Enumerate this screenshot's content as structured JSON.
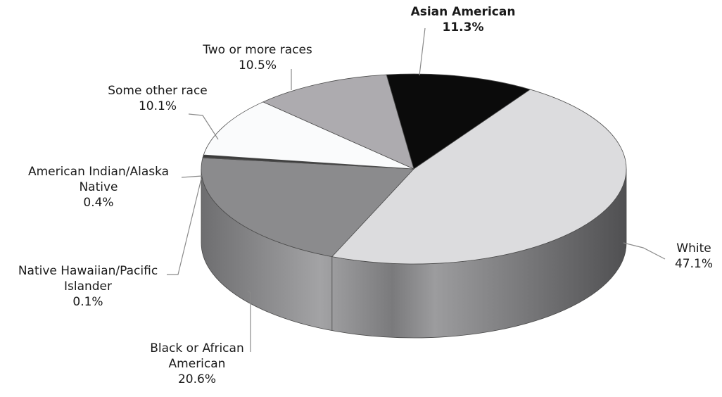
{
  "chart_data": {
    "type": "pie",
    "slices": [
      {
        "name": "Asian American",
        "value": 11.3,
        "label": "11.3%",
        "color": "#0b0b0b",
        "bold": true
      },
      {
        "name": "White",
        "value": 47.1,
        "label": "47.1%",
        "color": "#dcdcde",
        "bold": false
      },
      {
        "name": "Black or African American",
        "value": 20.6,
        "label": "20.6%",
        "color": "#8b8b8d",
        "bold": false
      },
      {
        "name": "Native Hawaiian/Pacific Islander",
        "value": 0.1,
        "label": "0.1%",
        "color": "#555555",
        "bold": false
      },
      {
        "name": "American Indian/Alaska Native",
        "value": 0.4,
        "label": "0.4%",
        "color": "#3a3a3a",
        "bold": false
      },
      {
        "name": "Some other race",
        "value": 10.1,
        "label": "10.1%",
        "color": "#fafbfc",
        "bold": false
      },
      {
        "name": "Two or more races",
        "value": 10.5,
        "label": "10.5%",
        "color": "#adabaf",
        "bold": false
      }
    ],
    "title": ""
  }
}
